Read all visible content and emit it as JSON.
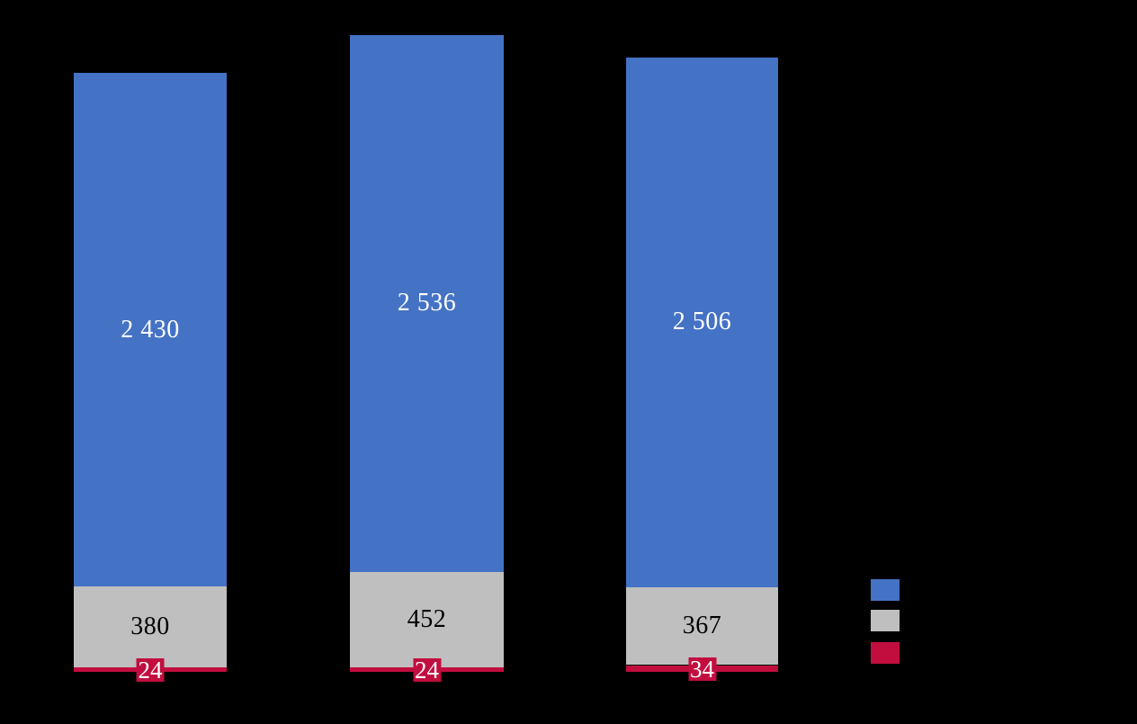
{
  "chart_data": {
    "type": "bar",
    "stacked": true,
    "orientation": "vertical-columns",
    "title": "",
    "xlabel": "",
    "ylabel": "",
    "grid": false,
    "background_color": "#000000",
    "categories": [
      "",
      "",
      ""
    ],
    "category_totals": [
      2834,
      3012,
      2907
    ],
    "series": [
      {
        "name": "",
        "color": "#4472C4",
        "label_color": "#FFFFFF",
        "values": [
          2430,
          2536,
          2506
        ],
        "labels": [
          "2 430",
          "2 536",
          "2 506"
        ],
        "label_style": "inside-center"
      },
      {
        "name": "",
        "color": "#BFBFBF",
        "label_color": "#000000",
        "values": [
          380,
          452,
          367
        ],
        "labels": [
          "380",
          "452",
          "367"
        ],
        "label_style": "inside-center"
      },
      {
        "name": "",
        "color": "#C20E3F",
        "label_color": "#FFFFFF",
        "values": [
          24,
          24,
          34
        ],
        "labels": [
          "24",
          "24",
          "34"
        ],
        "label_style": "badge"
      }
    ],
    "legend": {
      "position": "right",
      "entries": [
        {
          "label": "",
          "color": "#4472C4"
        },
        {
          "label": "",
          "color": "#BFBFBF"
        },
        {
          "label": "",
          "color": "#C20E3F"
        }
      ]
    }
  }
}
